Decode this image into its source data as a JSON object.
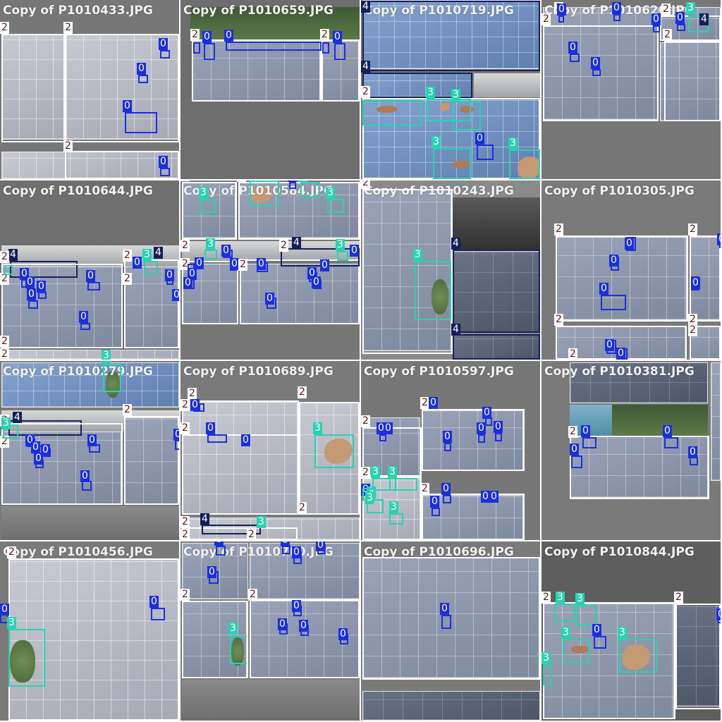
{
  "mosaic": {
    "tiles": [
      {
        "title": "Copy of P1010433.JPG"
      },
      {
        "title": "Copy of P1010659.JPG"
      },
      {
        "title": "Copy of P1010719.JPG"
      },
      {
        "title": "Copy of P1010620.JPG"
      },
      {
        "title": "Copy of P1010644.JPG"
      },
      {
        "title": "Copy of P1010584.JPG"
      },
      {
        "title": "Copy of P1010243.JPG"
      },
      {
        "title": "Copy of P1010305.JPG"
      },
      {
        "title": "Copy of P1010279.JPG"
      },
      {
        "title": "Copy of P1010689.JPG"
      },
      {
        "title": "Copy of P1010597.JPG"
      },
      {
        "title": "Copy of P1010381.JPG"
      },
      {
        "title": "Copy of P1010456.JPG"
      },
      {
        "title": "Copy of P1010700.JPG"
      },
      {
        "title": "Copy of P1010696.JPG"
      },
      {
        "title": "Copy of P1010844.JPG"
      }
    ],
    "class_colors": {
      "0": "#1a2fe0",
      "2": "#ffffff",
      "3": "#27d3b0",
      "4": "#14205a"
    },
    "class_labels": {
      "c0": "0",
      "c2": "2",
      "c3": "3",
      "c4": "4"
    }
  }
}
